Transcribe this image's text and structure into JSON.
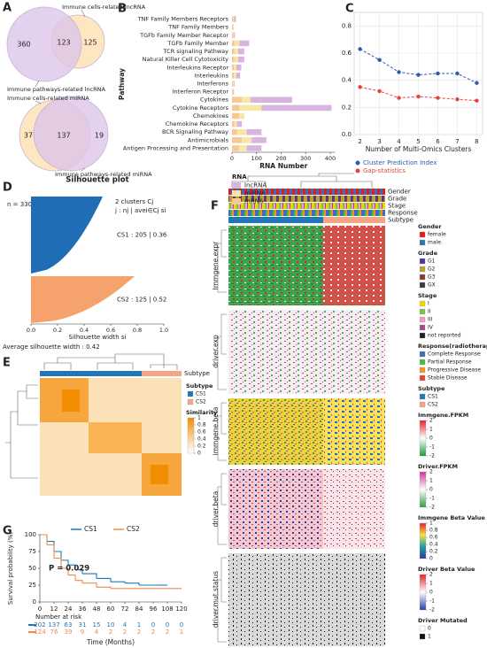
{
  "chart_data": [
    {
      "type": "venn",
      "panel": "A",
      "sets": [
        "Immune cells-related lncRNA",
        "Immune pathways-related lncRNA"
      ],
      "values": [
        125,
        123,
        360
      ],
      "colors": [
        "#fde0b0",
        "#dcc6ea"
      ]
    },
    {
      "type": "venn",
      "sets": [
        "Immune cells-related miRNA",
        "Immune pathways-related miRNA"
      ],
      "values": [
        37,
        137,
        19
      ],
      "colors": [
        "#fde0b0",
        "#dcc6ea"
      ]
    },
    {
      "type": "bar",
      "panel": "B",
      "orientation": "horizontal",
      "stacked": true,
      "categories": [
        "TNF Family Members Receptors",
        "TNF Family Members",
        "TGFb Family Member Receptor",
        "TGFb Family Member",
        "TCR signaling Pathway",
        "Natural Killer Cell Cytotoxicity",
        "Interleukins Receptor",
        "Interleukins",
        "Interferons",
        "Interferon Receptor",
        "Cytokines",
        "Cytokine Receptors",
        "Chemokines",
        "Chemokine Receptors",
        "BCR Signaling Pathway",
        "Antimicrobials",
        "Antigen Processing and Presentation"
      ],
      "series": [
        {
          "name": "lncRNA",
          "color": "#d7b5df",
          "values": [
            8,
            0,
            4,
            40,
            25,
            25,
            20,
            15,
            3,
            3,
            170,
            285,
            0,
            20,
            60,
            60,
            60
          ]
        },
        {
          "name": "miRNA",
          "color": "#f6e7a6",
          "values": [
            3,
            2,
            3,
            20,
            15,
            15,
            10,
            10,
            3,
            2,
            35,
            90,
            20,
            10,
            40,
            40,
            30
          ]
        },
        {
          "name": "mRNA",
          "color": "#f8c796",
          "values": [
            5,
            5,
            5,
            10,
            10,
            10,
            8,
            8,
            4,
            3,
            40,
            30,
            30,
            10,
            20,
            40,
            30
          ]
        }
      ],
      "xlabel": "RNA Number",
      "ylabel": "Pathway",
      "legend_title": "RNA",
      "xlim": [
        0,
        420
      ],
      "xticks": [
        0,
        100,
        200,
        300,
        400
      ]
    },
    {
      "type": "line",
      "panel": "C",
      "x": [
        2,
        3,
        4,
        5,
        6,
        7,
        8
      ],
      "series": [
        {
          "name": "Cluster Prediction Index",
          "color": "#2b5ca8",
          "values": [
            0.63,
            0.55,
            0.46,
            0.44,
            0.45,
            0.45,
            0.38
          ]
        },
        {
          "name": "Gap-statistics",
          "color": "#e8413a",
          "values": [
            0.35,
            0.32,
            0.27,
            0.28,
            0.27,
            0.26,
            0.25
          ]
        }
      ],
      "xlabel": "Number of Multi-Omics Clusters",
      "xlim": [
        1.7,
        8.3
      ],
      "ylim": [
        0,
        0.9
      ],
      "xticks": [
        2,
        3,
        4,
        5,
        6,
        7,
        8
      ],
      "yticks": [
        {
          "value": 0,
          "label": "0.0"
        },
        0.2,
        0.4,
        0.6,
        0.8
      ],
      "grid": true
    },
    {
      "type": "silhouette",
      "panel": "D",
      "title": "Silhouette plot",
      "n_label": "n = 330",
      "header": [
        "2  clusters  Cj",
        "j :  nj | avei∈Cj si"
      ],
      "cluster_labels": [
        "CS1 :  205 | 0.36",
        "CS2 :  125 | 0.52"
      ],
      "sizes": [
        205,
        125
      ],
      "values": [
        0.36,
        0.52
      ],
      "colors": [
        "#1f6db5",
        "#f6a26c"
      ],
      "xlabel": "Silhouette width si",
      "footer": "Average silhouette width : 0.42",
      "xlim": [
        0,
        1
      ],
      "xticks": [
        {
          "value": 0,
          "label": "0.0"
        },
        0.2,
        0.4,
        0.6,
        0.8,
        {
          "value": 1,
          "label": "1.0"
        }
      ]
    },
    {
      "type": "heatmap",
      "panel": "E",
      "annotations": [
        "Subtype"
      ],
      "legends": [
        {
          "title": "Subtype",
          "items": [
            {
              "name": "CS1",
              "color": "#1f78b4"
            },
            {
              "name": "CS2",
              "color": "#f4a582"
            }
          ]
        },
        {
          "title": "Similarity",
          "ticks": [
            1,
            0.8,
            0.6,
            0.4,
            0.2,
            0
          ],
          "colors": [
            "#f28c00",
            "#f9c98a",
            "#ffffff"
          ]
        }
      ]
    },
    {
      "type": "heatmap",
      "panel": "F",
      "annotations": [
        "Gender",
        "Grade",
        "Stage",
        "Response",
        "Subtype"
      ],
      "blocks": [
        "Immgene.expr",
        "driver.exp",
        "immgene.beta",
        "driver.beta",
        "driver.mut.status"
      ],
      "legends": [
        {
          "title": "Gender",
          "items": [
            {
              "name": "female",
              "color": "#e41a1c"
            },
            {
              "name": "male",
              "color": "#3a6fb0"
            }
          ]
        },
        {
          "title": "Grade",
          "items": [
            {
              "name": "G1",
              "color": "#4b3a8f"
            },
            {
              "name": "G2",
              "color": "#b8a22e"
            },
            {
              "name": "G3",
              "color": "#8b3a3a"
            },
            {
              "name": "GX",
              "color": "#3d3d3d"
            }
          ]
        },
        {
          "title": "Stage",
          "items": [
            {
              "name": "I",
              "color": "#f2d600"
            },
            {
              "name": "II",
              "color": "#7cc242"
            },
            {
              "name": "III",
              "color": "#f49ac1"
            },
            {
              "name": "IV",
              "color": "#9e4b8a"
            },
            {
              "name": "not reported",
              "color": "#222222"
            }
          ]
        },
        {
          "title": "Response(radiotherapy)",
          "items": [
            {
              "name": "Complete Response",
              "color": "#3c6fb5"
            },
            {
              "name": "Partial Response",
              "color": "#50b848"
            },
            {
              "name": "Progressive Disease",
              "color": "#f7941d"
            },
            {
              "name": "Stable Disease",
              "color": "#e8413a"
            }
          ]
        },
        {
          "title": "Subtype",
          "items": [
            {
              "name": "CS1",
              "color": "#1f78b4"
            },
            {
              "name": "CS2",
              "color": "#f4a582"
            }
          ]
        },
        {
          "title": "Immgene.FPKM",
          "ticks": [
            2,
            1,
            0,
            -1,
            -2
          ],
          "colors": [
            "#e8232a",
            "#ffffff",
            "#1a9a3c"
          ]
        },
        {
          "title": "Driver.FPKM",
          "ticks": [
            2,
            1,
            0,
            -1,
            -2
          ],
          "colors": [
            "#d6308f",
            "#ffffff",
            "#2e9e44"
          ]
        },
        {
          "title": "Immgene Beta Value",
          "ticks": [
            1,
            0.8,
            0.6,
            0.4,
            0.2,
            0
          ],
          "colors": [
            "#e8232a",
            "#f5e04a",
            "#1aa0a0",
            "#2b3ea8"
          ]
        },
        {
          "title": "Driver Beta Value",
          "ticks": [
            2,
            1,
            0,
            -1,
            -2
          ],
          "colors": [
            "#e8232a",
            "#ffffff",
            "#2b3ea8"
          ]
        },
        {
          "title": "Driver Mutated",
          "items": [
            {
              "name": "0",
              "color": "#ffffff"
            },
            {
              "name": "1",
              "color": "#111111"
            }
          ]
        }
      ]
    },
    {
      "type": "km",
      "panel": "G",
      "series": [
        {
          "name": "CS1",
          "color": "#1f77b4",
          "x": [
            0,
            6,
            12,
            18,
            24,
            30,
            36,
            48,
            60,
            72,
            84,
            100,
            108
          ],
          "values": [
            100,
            90,
            75,
            62,
            55,
            48,
            42,
            35,
            30,
            28,
            25,
            25,
            25
          ],
          "at_risk": [
            202,
            137,
            63,
            31,
            15,
            10,
            4,
            1,
            0,
            0,
            0
          ]
        },
        {
          "name": "CS2",
          "color": "#f08a4b",
          "x": [
            0,
            6,
            12,
            18,
            24,
            30,
            36,
            48,
            60,
            72,
            120
          ],
          "values": [
            100,
            85,
            65,
            50,
            40,
            32,
            28,
            22,
            20,
            20,
            20
          ],
          "at_risk": [
            124,
            76,
            39,
            9,
            4,
            2,
            2,
            2,
            2,
            2,
            1
          ]
        }
      ],
      "annotation": "P = 0.029",
      "xlabel": "Time (Months)",
      "ylabel": "Survival probability (%)",
      "risk_title": "Number at risk",
      "xlim": [
        0,
        120
      ],
      "ylim": [
        0,
        100
      ],
      "xticks": [
        0,
        12,
        24,
        36,
        48,
        60,
        72,
        84,
        96,
        108,
        120
      ],
      "yticks": [
        0,
        25,
        50,
        75,
        100
      ]
    }
  ]
}
